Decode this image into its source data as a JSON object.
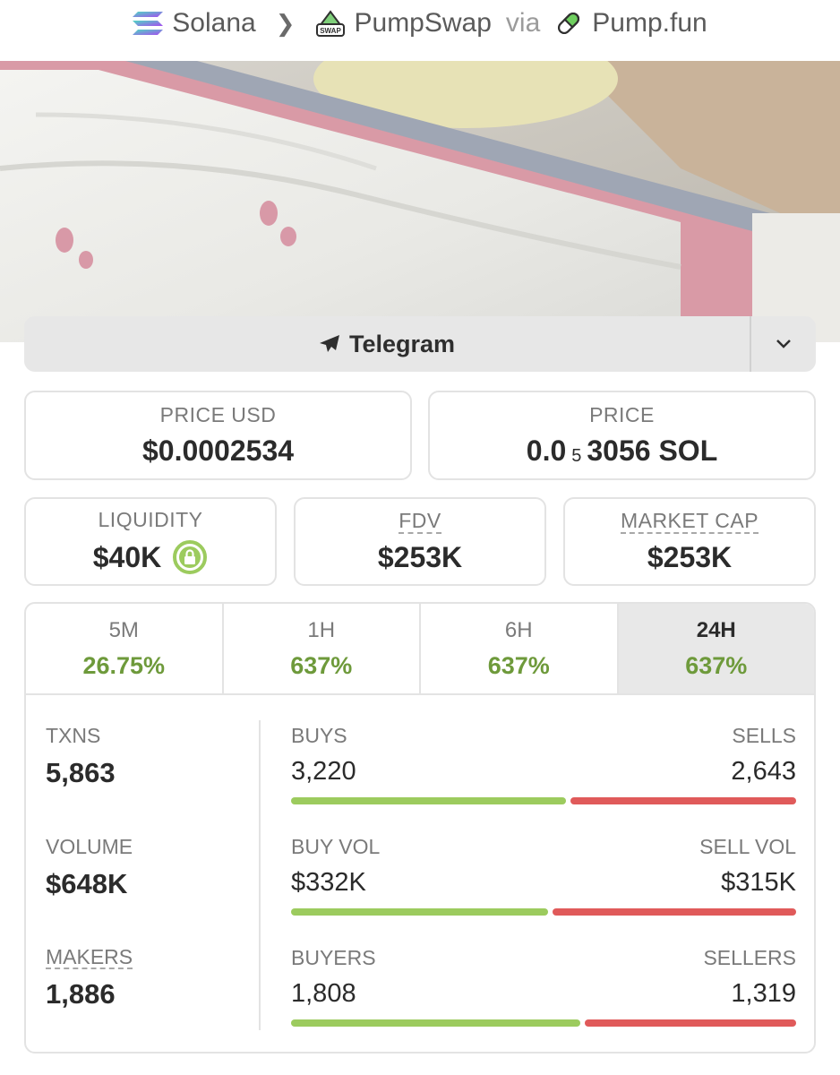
{
  "breadcrumb": {
    "chain": "Solana",
    "dex": "PumpSwap",
    "via": "via",
    "launchpad": "Pump.fun",
    "swap_badge": "SWAP",
    "chain_icon": "solana-icon",
    "dex_icon": "pumpswap-icon",
    "launchpad_icon": "pill-icon"
  },
  "banner": {
    "description_icon": "token-banner-image"
  },
  "social": {
    "label": "Telegram",
    "icon": "paper-plane-icon",
    "dropdown_icon": "chevron-down-icon"
  },
  "price": {
    "usd_label": "PRICE USD",
    "usd_value": "$0.0002534",
    "native_label": "PRICE",
    "native_prefix": "0.0",
    "native_zeros": "5",
    "native_digits": "3056 SOL"
  },
  "metrics": {
    "liquidity_label": "LIQUIDITY",
    "liquidity_value": "$40K",
    "fdv_label": "FDV",
    "fdv_value": "$253K",
    "mcap_label": "MARKET CAP",
    "mcap_value": "$253K"
  },
  "periods": [
    {
      "label": "5M",
      "change": "26.75%"
    },
    {
      "label": "1H",
      "change": "637%"
    },
    {
      "label": "6H",
      "change": "637%"
    },
    {
      "label": "24H",
      "change": "637%"
    }
  ],
  "active_period": "24H",
  "stats": {
    "txns_label": "TXNS",
    "txns_value": "5,863",
    "volume_label": "VOLUME",
    "volume_value": "$648K",
    "makers_label": "MAKERS",
    "makers_value": "1,886",
    "buys_label": "BUYS",
    "buys_value": "3,220",
    "buys_ratio": 0.549,
    "sells_label": "SELLS",
    "sells_value": "2,643",
    "buyvol_label": "BUY VOL",
    "buyvol_value": "$332K",
    "buyvol_ratio": 0.513,
    "sellvol_label": "SELL VOL",
    "sellvol_value": "$315K",
    "buyers_label": "BUYERS",
    "buyers_value": "1,808",
    "buyers_ratio": 0.578,
    "sellers_label": "SELLERS",
    "sellers_value": "1,319"
  },
  "colors": {
    "positive": "#6e9a3b",
    "buy_bar": "#9ccb5e",
    "sell_bar": "#e05a5a"
  }
}
